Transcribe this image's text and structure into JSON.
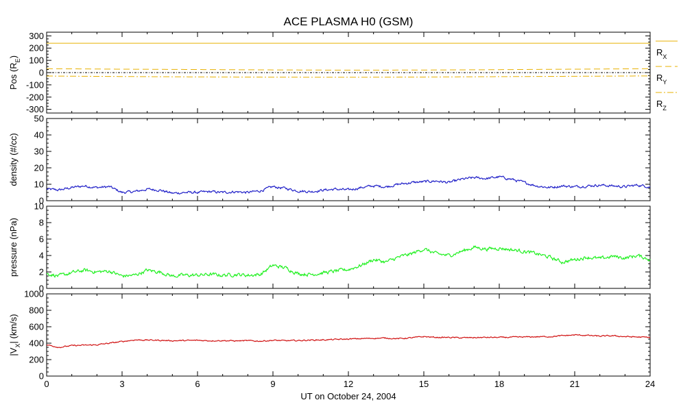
{
  "title": "ACE PLASMA H0 (GSM)",
  "xlabel": "UT on October 24, 2004",
  "colors": {
    "axes": "#000000",
    "position": "#e8b000",
    "density": "#2020c8",
    "pressure": "#20f020",
    "velocity": "#d01010"
  },
  "chart_data": [
    {
      "type": "line",
      "name": "position",
      "ylabel": "Pos (RE)",
      "ylabel_main": "Pos (R",
      "ylabel_sub": "E",
      "ylabel_end": ")",
      "xlim": [
        0,
        24
      ],
      "ylim": [
        -330,
        330
      ],
      "yticks": [
        300,
        200,
        100,
        0,
        -100,
        -200,
        -300
      ],
      "xticks": [
        0,
        3,
        6,
        9,
        12,
        15,
        18,
        21,
        24
      ],
      "zero_line": true,
      "series": [
        {
          "label": "RX",
          "label_main": "R",
          "label_sub": "X",
          "style": "solid",
          "x": [
            0,
            24
          ],
          "y": [
            240,
            240
          ]
        },
        {
          "label": "RY",
          "label_main": "R",
          "label_sub": "Y",
          "style": "dashed",
          "x": [
            0,
            3,
            6,
            9,
            12,
            15,
            18,
            21,
            24
          ],
          "y": [
            32,
            28,
            25,
            22,
            20,
            21,
            24,
            28,
            32
          ]
        },
        {
          "label": "RZ",
          "label_main": "R",
          "label_sub": "Z",
          "style": "dashdot",
          "x": [
            0,
            3,
            6,
            9,
            12,
            15,
            18,
            21,
            24
          ],
          "y": [
            -28,
            -32,
            -35,
            -37,
            -38,
            -36,
            -33,
            -30,
            -27
          ]
        }
      ]
    },
    {
      "type": "line",
      "name": "density",
      "ylabel": "density (#/cc)",
      "xlim": [
        0,
        24
      ],
      "ylim": [
        0,
        50
      ],
      "yticks": [
        50,
        40,
        30,
        20,
        10,
        0
      ],
      "xticks": [
        0,
        3,
        6,
        9,
        12,
        15,
        18,
        21,
        24
      ],
      "series": [
        {
          "label": "density",
          "x": [
            0,
            0.5,
            1,
            1.5,
            2,
            2.5,
            3,
            3.5,
            4,
            4.5,
            5,
            5.5,
            6,
            6.5,
            7,
            7.5,
            8,
            8.5,
            9,
            9.5,
            10,
            10.5,
            11,
            11.5,
            12,
            12.5,
            13,
            13.5,
            14,
            14.5,
            15,
            15.5,
            16,
            16.5,
            17,
            17.5,
            18,
            18.5,
            19,
            19.5,
            20,
            20.5,
            21,
            21.5,
            22,
            22.5,
            23,
            23.5,
            24
          ],
          "y": [
            7,
            6.5,
            8,
            9,
            8,
            8.5,
            5,
            5.5,
            7,
            6.5,
            4.5,
            5,
            5,
            5.5,
            5,
            5.5,
            5,
            6,
            8.5,
            7.5,
            6,
            5.5,
            6.5,
            7,
            6.5,
            8,
            9,
            8.5,
            10,
            11,
            11.5,
            12,
            11,
            13,
            14,
            13.5,
            14.5,
            13,
            11,
            9,
            8,
            9,
            8.5,
            9,
            9.5,
            9,
            8.5,
            9.5,
            8.5
          ]
        }
      ]
    },
    {
      "type": "line",
      "name": "pressure",
      "ylabel": "pressure (nPa)",
      "xlim": [
        0,
        24
      ],
      "ylim": [
        0,
        10
      ],
      "yticks": [
        10,
        8,
        6,
        4,
        2,
        0
      ],
      "xticks": [
        0,
        3,
        6,
        9,
        12,
        15,
        18,
        21,
        24
      ],
      "series": [
        {
          "label": "pressure",
          "x": [
            0,
            0.5,
            1,
            1.5,
            2,
            2.5,
            3,
            3.5,
            4,
            4.5,
            5,
            5.5,
            6,
            6.5,
            7,
            7.5,
            8,
            8.5,
            9,
            9.5,
            10,
            10.5,
            11,
            11.5,
            12,
            12.5,
            13,
            13.5,
            14,
            14.5,
            15,
            15.5,
            16,
            16.5,
            17,
            17.5,
            18,
            18.5,
            19,
            19.5,
            20,
            20.5,
            21,
            21.5,
            22,
            22.5,
            23,
            23.5,
            24
          ],
          "y": [
            1.8,
            1.5,
            1.9,
            2.2,
            2.0,
            2.1,
            1.5,
            1.6,
            2.2,
            2.0,
            1.5,
            1.6,
            1.6,
            1.7,
            1.6,
            1.7,
            1.6,
            1.7,
            2.8,
            2.5,
            1.8,
            1.7,
            1.9,
            2.1,
            2.3,
            2.8,
            3.5,
            3.2,
            3.8,
            4.2,
            4.8,
            4.2,
            4.0,
            4.5,
            5.0,
            4.8,
            4.9,
            4.7,
            4.5,
            4.2,
            3.8,
            3.2,
            3.5,
            3.8,
            3.6,
            3.9,
            3.7,
            4.0,
            3.5
          ]
        }
      ]
    },
    {
      "type": "line",
      "name": "velocity",
      "ylabel": "|VX| (km/s)",
      "ylabel_main": "|V",
      "ylabel_sub": "X",
      "ylabel_end": "| (km/s)",
      "xlim": [
        0,
        24
      ],
      "ylim": [
        0,
        1000
      ],
      "yticks": [
        1000,
        800,
        600,
        400,
        200,
        0
      ],
      "xticks": [
        0,
        3,
        6,
        9,
        12,
        15,
        18,
        21,
        24
      ],
      "xticklabels": [
        "0",
        "3",
        "6",
        "9",
        "12",
        "15",
        "18",
        "21",
        "24"
      ],
      "series": [
        {
          "label": "velocity",
          "x": [
            0,
            0.5,
            1,
            1.5,
            2,
            2.5,
            3,
            3.5,
            4,
            4.5,
            5,
            5.5,
            6,
            6.5,
            7,
            7.5,
            8,
            8.5,
            9,
            9.5,
            10,
            10.5,
            11,
            11.5,
            12,
            12.5,
            13,
            13.5,
            14,
            14.5,
            15,
            15.5,
            16,
            16.5,
            17,
            17.5,
            18,
            18.5,
            19,
            19.5,
            20,
            20.5,
            21,
            21.5,
            22,
            22.5,
            23,
            23.5,
            24
          ],
          "y": [
            380,
            350,
            370,
            375,
            380,
            400,
            420,
            440,
            438,
            435,
            430,
            432,
            435,
            430,
            432,
            428,
            430,
            425,
            435,
            430,
            432,
            438,
            440,
            445,
            450,
            455,
            460,
            462,
            455,
            465,
            480,
            470,
            470,
            465,
            468,
            470,
            470,
            472,
            475,
            478,
            480,
            490,
            500,
            495,
            485,
            490,
            480,
            475,
            470
          ]
        }
      ]
    }
  ]
}
